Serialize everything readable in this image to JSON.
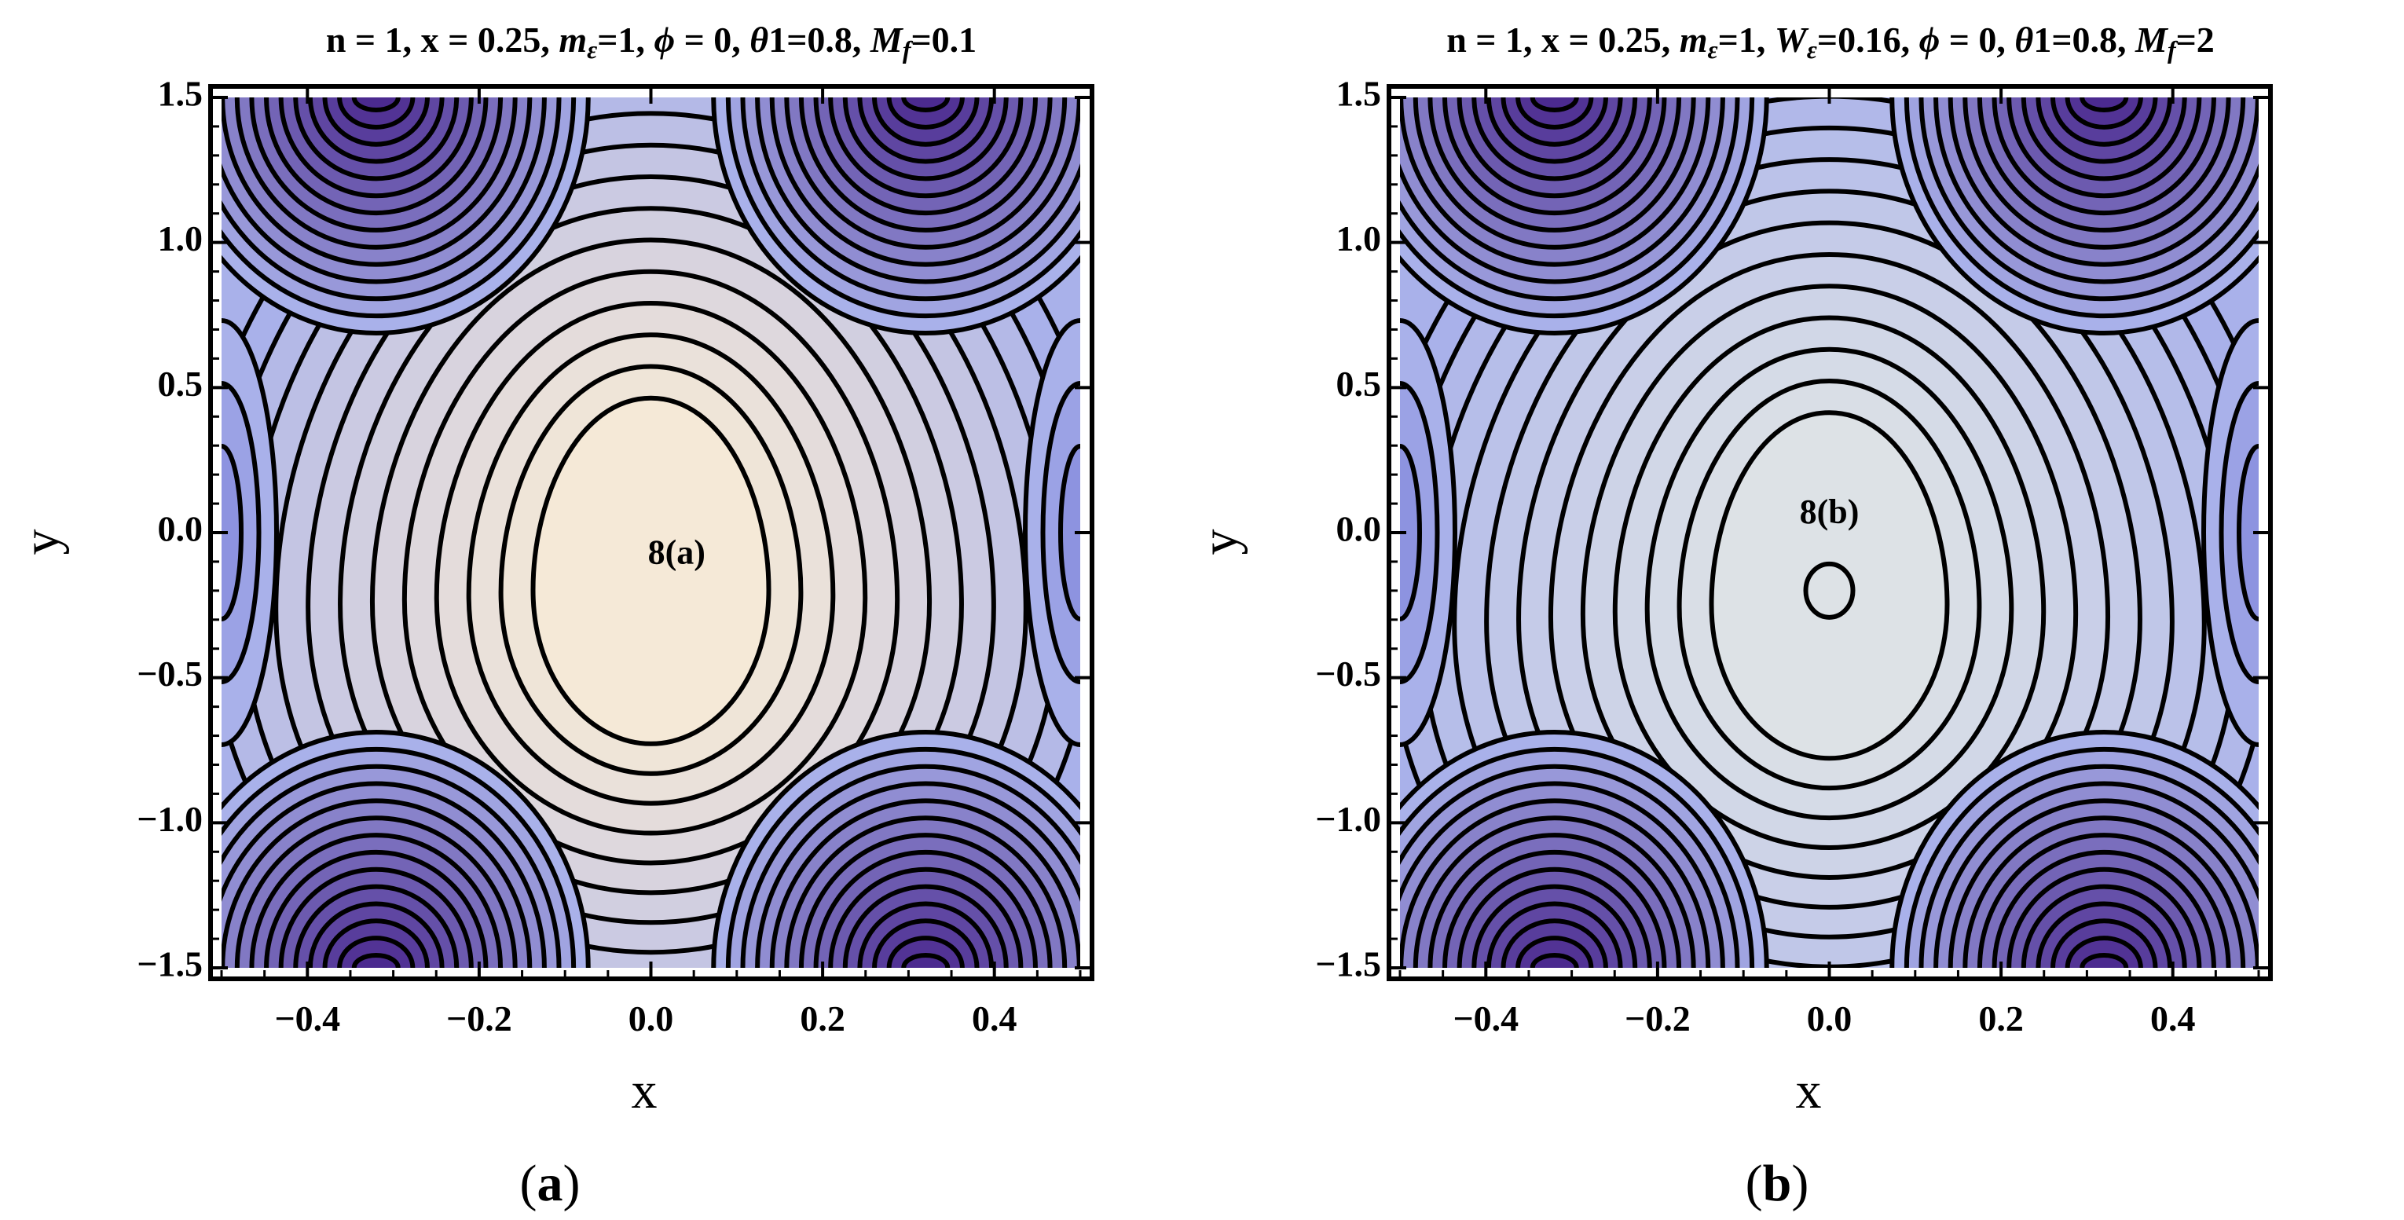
{
  "chart_data": [
    {
      "type": "contour",
      "panel": "a",
      "title_parts": [
        "n = 1, x = 0.25, ",
        "m",
        "ε",
        "=1, ",
        "ϕ",
        " = 0, ",
        "θ",
        "1=0.8, ",
        "M",
        "f",
        "=0.1"
      ],
      "xlabel": "x",
      "ylabel": "y",
      "xlim": [
        -0.5,
        0.5
      ],
      "ylim": [
        -1.5,
        1.5
      ],
      "xticks": [
        "−0.4",
        "−0.2",
        "0.0",
        "0.2",
        "0.4"
      ],
      "xtick_values": [
        -0.4,
        -0.2,
        0.0,
        0.2,
        0.4
      ],
      "yticks": [
        "1.5",
        "1.0",
        "0.5",
        "0.0",
        "−0.5",
        "−1.0",
        "−1.5"
      ],
      "ytick_values": [
        1.5,
        1.0,
        0.5,
        0.0,
        -0.5,
        -1.0,
        -1.5
      ],
      "annotation": "8(a)",
      "annotation_at": [
        0.03,
        -0.08
      ],
      "center": [
        0.0,
        -0.15
      ],
      "inner_level_count": 12,
      "contour_color": "#000000",
      "color_low": "#4b2a8f",
      "color_mid": "#a9b1ea",
      "color_high": "#f5e9d7",
      "caption": [
        "(",
        "a",
        ")"
      ]
    },
    {
      "type": "contour",
      "panel": "b",
      "title_parts": [
        "n = 1, x = 0.25, ",
        "m",
        "ε",
        "=1, ",
        "W",
        "ε",
        "=0.16, ",
        "ϕ",
        " = 0, ",
        "θ",
        "1=0.8, ",
        "M",
        "f",
        "=2"
      ],
      "xlabel": "x",
      "ylabel": "y",
      "xlim": [
        -0.5,
        0.5
      ],
      "ylim": [
        -1.5,
        1.5
      ],
      "xticks": [
        "−0.4",
        "−0.2",
        "0.0",
        "0.2",
        "0.4"
      ],
      "xtick_values": [
        -0.4,
        -0.2,
        0.0,
        0.2,
        0.4
      ],
      "yticks": [
        "1.5",
        "1.0",
        "0.5",
        "0.0",
        "−0.5",
        "−1.0",
        "−1.5"
      ],
      "ytick_values": [
        1.5,
        1.0,
        0.5,
        0.0,
        -0.5,
        -1.0,
        -1.5
      ],
      "annotation": "8(b)",
      "annotation_at": [
        0.0,
        0.06
      ],
      "center": [
        0.0,
        -0.2
      ],
      "inner_level_count": 12,
      "contour_color": "#000000",
      "color_low": "#4b2a8f",
      "color_mid": "#a9b1ea",
      "color_high": "#dde2e6",
      "caption": [
        "(",
        "b",
        ")"
      ]
    }
  ]
}
